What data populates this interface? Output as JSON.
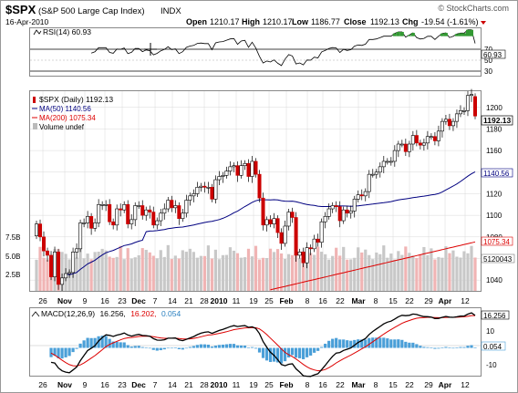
{
  "header": {
    "symbol": "$SPX",
    "name": "(S&P 500 Large Cap Index)",
    "exchange": "INDX",
    "date": "16-Apr-2010",
    "watermark": "© StockCharts.com",
    "open_label": "Open",
    "open": "1210.17",
    "high_label": "High",
    "high": "1210.17",
    "low_label": "Low",
    "low": "1186.77",
    "close_label": "Close",
    "close": "1192.13",
    "chg_label": "Chg",
    "chg": "-19.54 (-1.61%)"
  },
  "rsi": {
    "legend": "RSI(14) 60.93",
    "value_label": "60.93",
    "ticks": [
      "70",
      "50",
      "30"
    ]
  },
  "price": {
    "legend_title": "$SPX (Daily) 1192.13",
    "legend_ma50": "MA(50) 1140.56",
    "legend_ma200": "MA(200) 1075.34",
    "legend_volume": "Volume undef",
    "price_ticks": [
      "1200",
      "1180",
      "1160",
      "1140",
      "1120",
      "1100",
      "1080",
      "1060",
      "1040"
    ],
    "volume_ticks": [
      "7.5B",
      "5.0B",
      "2.5B"
    ],
    "close_tag": "1192.13",
    "ma50_tag": "1140.56",
    "ma200_tag": "1075.34",
    "volume_tag": "5120043"
  },
  "macd": {
    "legend_prefix": "MACD(12,26,9)",
    "legend_macd": "16.256,",
    "legend_signal": "16.202,",
    "legend_hist": "0.054",
    "macd_tag": "16.256",
    "hist_tag": "0.054",
    "ticks": [
      "10",
      "0",
      "-10"
    ]
  },
  "x_axis": {
    "labels": [
      "26",
      "Nov",
      "9",
      "16",
      "23",
      "Dec",
      "7",
      "14",
      "21",
      "28",
      "2010",
      "11",
      "19",
      "25",
      "Feb",
      "8",
      "16",
      "22",
      "Mar",
      "8",
      "15",
      "22",
      "29",
      "Apr",
      "12"
    ],
    "bold": [
      "Nov",
      "Dec",
      "2010",
      "Feb",
      "Mar",
      "Apr"
    ]
  },
  "colors": {
    "up": "#ffffff",
    "down": "#cc0000",
    "ma50": "#000080",
    "ma200": "#dd0000",
    "volume": "#c8c8c8",
    "volume_down": "#f0b4b4",
    "macd_hist": "#4a9fd8",
    "grid": "#d8d8d8"
  },
  "chart_data": [
    {
      "type": "candlestick",
      "title": "$SPX (Daily) 1192.13",
      "x": [
        "2009-10-22",
        "2009-10-23",
        "2009-10-26",
        "2009-10-27",
        "2009-10-28",
        "2009-10-29",
        "2009-10-30",
        "2009-11-02",
        "2009-11-03",
        "2009-11-04",
        "2009-11-05",
        "2009-11-06",
        "2009-11-09",
        "2009-11-10",
        "2009-11-11",
        "2009-11-12",
        "2009-11-13",
        "2009-11-16",
        "2009-11-17",
        "2009-11-18",
        "2009-11-19",
        "2009-11-20",
        "2009-11-23",
        "2009-11-24",
        "2009-11-25",
        "2009-11-27",
        "2009-11-30",
        "2009-12-01",
        "2009-12-02",
        "2009-12-03",
        "2009-12-04",
        "2009-12-07",
        "2009-12-08",
        "2009-12-09",
        "2009-12-10",
        "2009-12-11",
        "2009-12-14",
        "2009-12-15",
        "2009-12-16",
        "2009-12-17",
        "2009-12-18",
        "2009-12-21",
        "2009-12-22",
        "2009-12-23",
        "2009-12-24",
        "2009-12-28",
        "2009-12-29",
        "2009-12-30",
        "2009-12-31",
        "2010-01-04",
        "2010-01-05",
        "2010-01-06",
        "2010-01-07",
        "2010-01-08",
        "2010-01-11",
        "2010-01-12",
        "2010-01-13",
        "2010-01-14",
        "2010-01-15",
        "2010-01-19",
        "2010-01-20",
        "2010-01-21",
        "2010-01-22",
        "2010-01-25",
        "2010-01-26",
        "2010-01-27",
        "2010-01-28",
        "2010-01-29",
        "2010-02-01",
        "2010-02-02",
        "2010-02-03",
        "2010-02-04",
        "2010-02-05",
        "2010-02-08",
        "2010-02-09",
        "2010-02-10",
        "2010-02-11",
        "2010-02-12",
        "2010-02-16",
        "2010-02-17",
        "2010-02-18",
        "2010-02-19",
        "2010-02-22",
        "2010-02-23",
        "2010-02-24",
        "2010-02-25",
        "2010-02-26",
        "2010-03-01",
        "2010-03-02",
        "2010-03-03",
        "2010-03-04",
        "2010-03-05",
        "2010-03-08",
        "2010-03-09",
        "2010-03-10",
        "2010-03-11",
        "2010-03-12",
        "2010-03-15",
        "2010-03-16",
        "2010-03-17",
        "2010-03-18",
        "2010-03-19",
        "2010-03-22",
        "2010-03-23",
        "2010-03-24",
        "2010-03-25",
        "2010-03-26",
        "2010-03-29",
        "2010-03-30",
        "2010-03-31",
        "2010-04-01",
        "2010-04-05",
        "2010-04-06",
        "2010-04-07",
        "2010-04-08",
        "2010-04-09",
        "2010-04-12",
        "2010-04-13",
        "2010-04-14",
        "2010-04-15",
        "2010-04-16"
      ],
      "series": [
        {
          "name": "close",
          "values": [
            1092,
            1080,
            1067,
            1063,
            1043,
            1066,
            1036,
            1042,
            1046,
            1047,
            1066,
            1069,
            1093,
            1093,
            1099,
            1088,
            1093,
            1110,
            1110,
            1110,
            1094,
            1091,
            1106,
            1105,
            1110,
            1092,
            1096,
            1109,
            1109,
            1100,
            1105,
            1103,
            1091,
            1095,
            1102,
            1106,
            1114,
            1107,
            1109,
            1097,
            1102,
            1114,
            1118,
            1120,
            1126,
            1127,
            1126,
            1126,
            1115,
            1133,
            1136,
            1137,
            1141,
            1145,
            1146,
            1137,
            1146,
            1148,
            1136,
            1150,
            1138,
            1116,
            1091,
            1096,
            1092,
            1097,
            1084,
            1074,
            1090,
            1103,
            1098,
            1063,
            1066,
            1056,
            1070,
            1069,
            1078,
            1075,
            1094,
            1099,
            1106,
            1109,
            1108,
            1095,
            1105,
            1102,
            1104,
            1115,
            1119,
            1118,
            1122,
            1138,
            1138,
            1140,
            1145,
            1150,
            1150,
            1150,
            1160,
            1166,
            1166,
            1159,
            1166,
            1174,
            1167,
            1165,
            1167,
            1173,
            1173,
            1169,
            1178,
            1187,
            1189,
            1183,
            1187,
            1194,
            1197,
            1197,
            1211,
            1212,
            1192
          ]
        },
        {
          "name": "open",
          "values": [
            1081,
            1092,
            1080,
            1067,
            1063,
            1043,
            1066,
            1036,
            1042,
            1046,
            1047,
            1066,
            1069,
            1093,
            1093,
            1099,
            1088,
            1093,
            1110,
            1110,
            1110,
            1094,
            1091,
            1106,
            1105,
            1110,
            1092,
            1096,
            1109,
            1109,
            1100,
            1105,
            1103,
            1091,
            1095,
            1102,
            1106,
            1114,
            1107,
            1109,
            1097,
            1102,
            1114,
            1118,
            1120,
            1126,
            1127,
            1126,
            1126,
            1115,
            1133,
            1136,
            1137,
            1141,
            1145,
            1146,
            1137,
            1146,
            1148,
            1136,
            1150,
            1138,
            1116,
            1091,
            1096,
            1092,
            1097,
            1084,
            1074,
            1090,
            1103,
            1098,
            1063,
            1066,
            1056,
            1070,
            1069,
            1078,
            1075,
            1094,
            1099,
            1106,
            1109,
            1108,
            1095,
            1105,
            1102,
            1104,
            1115,
            1119,
            1118,
            1122,
            1138,
            1138,
            1140,
            1145,
            1150,
            1150,
            1150,
            1160,
            1166,
            1166,
            1159,
            1166,
            1174,
            1167,
            1165,
            1167,
            1173,
            1173,
            1169,
            1178,
            1187,
            1189,
            1183,
            1187,
            1194,
            1197,
            1197,
            1211,
            1210
          ]
        }
      ],
      "ma50_end": 1140.56,
      "ma200_end": 1075.34,
      "ylim": [
        1030,
        1215
      ]
    },
    {
      "type": "line",
      "title": "RSI(14) 60.93",
      "ylim": [
        20,
        80
      ],
      "reference_lines": [
        70,
        30
      ],
      "last_value": 60.93
    },
    {
      "type": "line",
      "title": "MACD(12,26,9)",
      "series": [
        {
          "name": "MACD",
          "last": 16.256
        },
        {
          "name": "signal",
          "last": 16.202
        },
        {
          "name": "histogram",
          "last": 0.054
        }
      ],
      "ylim": [
        -14,
        20
      ]
    }
  ]
}
